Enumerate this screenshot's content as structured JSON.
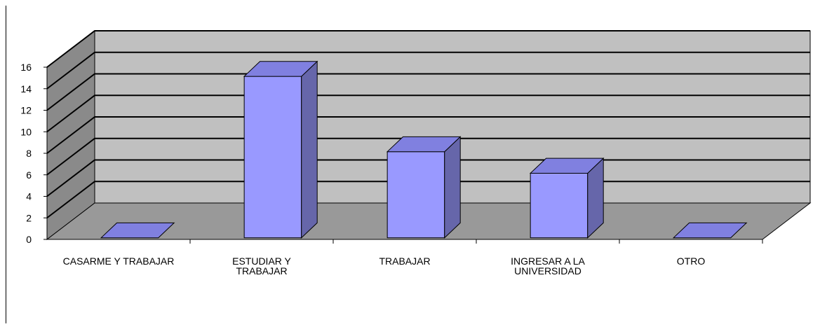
{
  "chart_data": {
    "type": "bar",
    "style": "3d-column",
    "categories": [
      [
        "CASARME Y TRABAJAR"
      ],
      [
        "ESTUDIAR Y",
        "TRABAJAR"
      ],
      [
        "TRABAJAR"
      ],
      [
        "INGRESAR A LA",
        "UNIVERSIDAD"
      ],
      [
        "OTRO"
      ]
    ],
    "values": [
      0,
      15,
      8,
      6,
      0
    ],
    "yticks": [
      "0",
      "2",
      "4",
      "6",
      "8",
      "10",
      "12",
      "14",
      "16"
    ],
    "ylim": [
      0,
      16
    ],
    "grid": true,
    "legend": "none",
    "colors": {
      "bar_front": "#9999ff",
      "bar_side": "#6666aa",
      "bar_top": "#8080e0",
      "back_wall": "#c0c0c0",
      "side_wall": "#8a8a8a",
      "floor": "#999999"
    }
  }
}
